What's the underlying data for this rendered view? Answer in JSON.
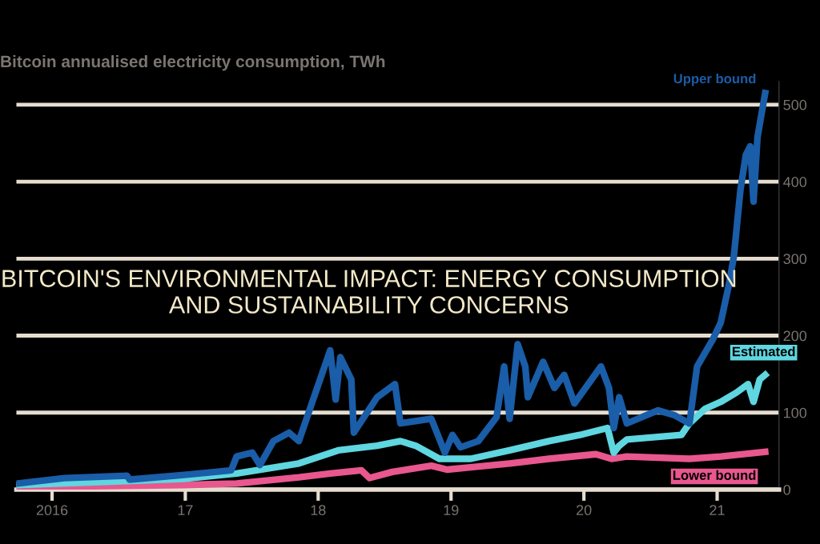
{
  "chart_data": {
    "type": "line",
    "title": "Bitcoin annualised electricity consumption, TWh",
    "annotations": [
      "BITCOIN'S ENVIRONMENTAL IMPACT: ENERGY CONSUMPTION AND SUSTAINABILITY CONCERNS"
    ],
    "xlim": [
      "2015-09-25",
      "2021-06-20"
    ],
    "xticks": [
      {
        "value": "2016-01-01",
        "label": "2016"
      },
      {
        "value": "2017-01-01",
        "label": "17"
      },
      {
        "value": "2018-01-01",
        "label": "18"
      },
      {
        "value": "2019-01-01",
        "label": "19"
      },
      {
        "value": "2020-01-01",
        "label": "20"
      },
      {
        "value": "2021-01-01",
        "label": "21"
      }
    ],
    "ylim": [
      0,
      530
    ],
    "yticks": [
      0,
      100,
      200,
      300,
      400,
      500
    ],
    "grid": "y",
    "legend": false,
    "series": [
      {
        "name": "Upper bound",
        "color": "#1a5da8",
        "x": [
          "2015-09-29",
          "2016-02-04",
          "2016-07-25",
          "2016-08-01",
          "2016-12-29",
          "2017-05-07",
          "2017-05-22",
          "2017-07-04",
          "2017-07-25",
          "2017-08-31",
          "2017-10-13",
          "2017-11-09",
          "2017-12-16",
          "2018-02-03",
          "2018-02-18",
          "2018-03-03",
          "2018-04-02",
          "2018-04-09",
          "2018-06-12",
          "2018-07-31",
          "2018-08-15",
          "2018-11-08",
          "2018-12-15",
          "2019-01-05",
          "2019-01-27",
          "2019-03-17",
          "2019-05-06",
          "2019-05-27",
          "2019-06-11",
          "2019-07-03",
          "2019-07-24",
          "2019-07-31",
          "2019-09-11",
          "2019-10-12",
          "2019-11-08",
          "2019-12-06",
          "2020-02-17",
          "2020-03-10",
          "2020-03-23",
          "2020-04-07",
          "2020-04-28",
          "2020-07-23",
          "2020-09-04",
          "2020-10-17",
          "2020-11-07",
          "2020-12-20",
          "2021-01-11",
          "2021-02-01",
          "2021-02-16",
          "2021-03-06",
          "2021-03-21",
          "2021-04-02",
          "2021-04-11",
          "2021-04-22",
          "2021-05-13"
        ],
        "values": [
          8,
          15,
          18,
          13,
          19,
          25,
          43,
          48,
          32,
          63,
          74,
          63,
          114,
          181,
          117,
          172,
          143,
          74,
          120,
          137,
          86,
          92,
          48,
          71,
          55,
          63,
          94,
          160,
          92,
          189,
          160,
          120,
          166,
          132,
          149,
          112,
          160,
          132,
          80,
          120,
          86,
          103,
          97,
          86,
          160,
          195,
          217,
          263,
          303,
          389,
          435,
          446,
          374,
          458,
          515
        ]
      },
      {
        "name": "Estimated",
        "color": "#5fd6e0",
        "x": [
          "2015-09-29",
          "2016-07-25",
          "2016-12-29",
          "2017-05-22",
          "2017-11-09",
          "2018-02-25",
          "2018-06-12",
          "2018-08-15",
          "2018-09-26",
          "2018-11-30",
          "2019-02-24",
          "2019-06-11",
          "2019-09-27",
          "2019-12-21",
          "2020-03-06",
          "2020-03-23",
          "2020-04-07",
          "2020-04-28",
          "2020-09-25",
          "2020-10-17",
          "2020-11-29",
          "2021-01-11",
          "2021-02-23",
          "2021-03-27",
          "2021-04-11",
          "2021-04-28",
          "2021-05-13"
        ],
        "values": [
          6,
          11,
          14,
          21,
          34,
          51,
          57,
          63,
          57,
          40,
          40,
          51,
          63,
          71,
          80,
          48,
          57,
          65,
          71,
          86,
          105,
          114,
          126,
          137,
          114,
          143,
          149
        ]
      },
      {
        "name": "Lower bound",
        "color": "#e8578e",
        "x": [
          "2015-09-29",
          "2016-12-29",
          "2017-05-22",
          "2017-11-09",
          "2018-02-03",
          "2018-04-30",
          "2018-05-22",
          "2018-07-24",
          "2018-11-08",
          "2018-12-21",
          "2019-02-24",
          "2019-06-11",
          "2019-09-27",
          "2020-02-03",
          "2020-03-17",
          "2020-04-28",
          "2020-10-17",
          "2021-01-11",
          "2021-05-13"
        ],
        "values": [
          3,
          6,
          8,
          16,
          21,
          25,
          15,
          23,
          31,
          26,
          29,
          34,
          40,
          46,
          40,
          43,
          40,
          43,
          49
        ]
      }
    ]
  }
}
